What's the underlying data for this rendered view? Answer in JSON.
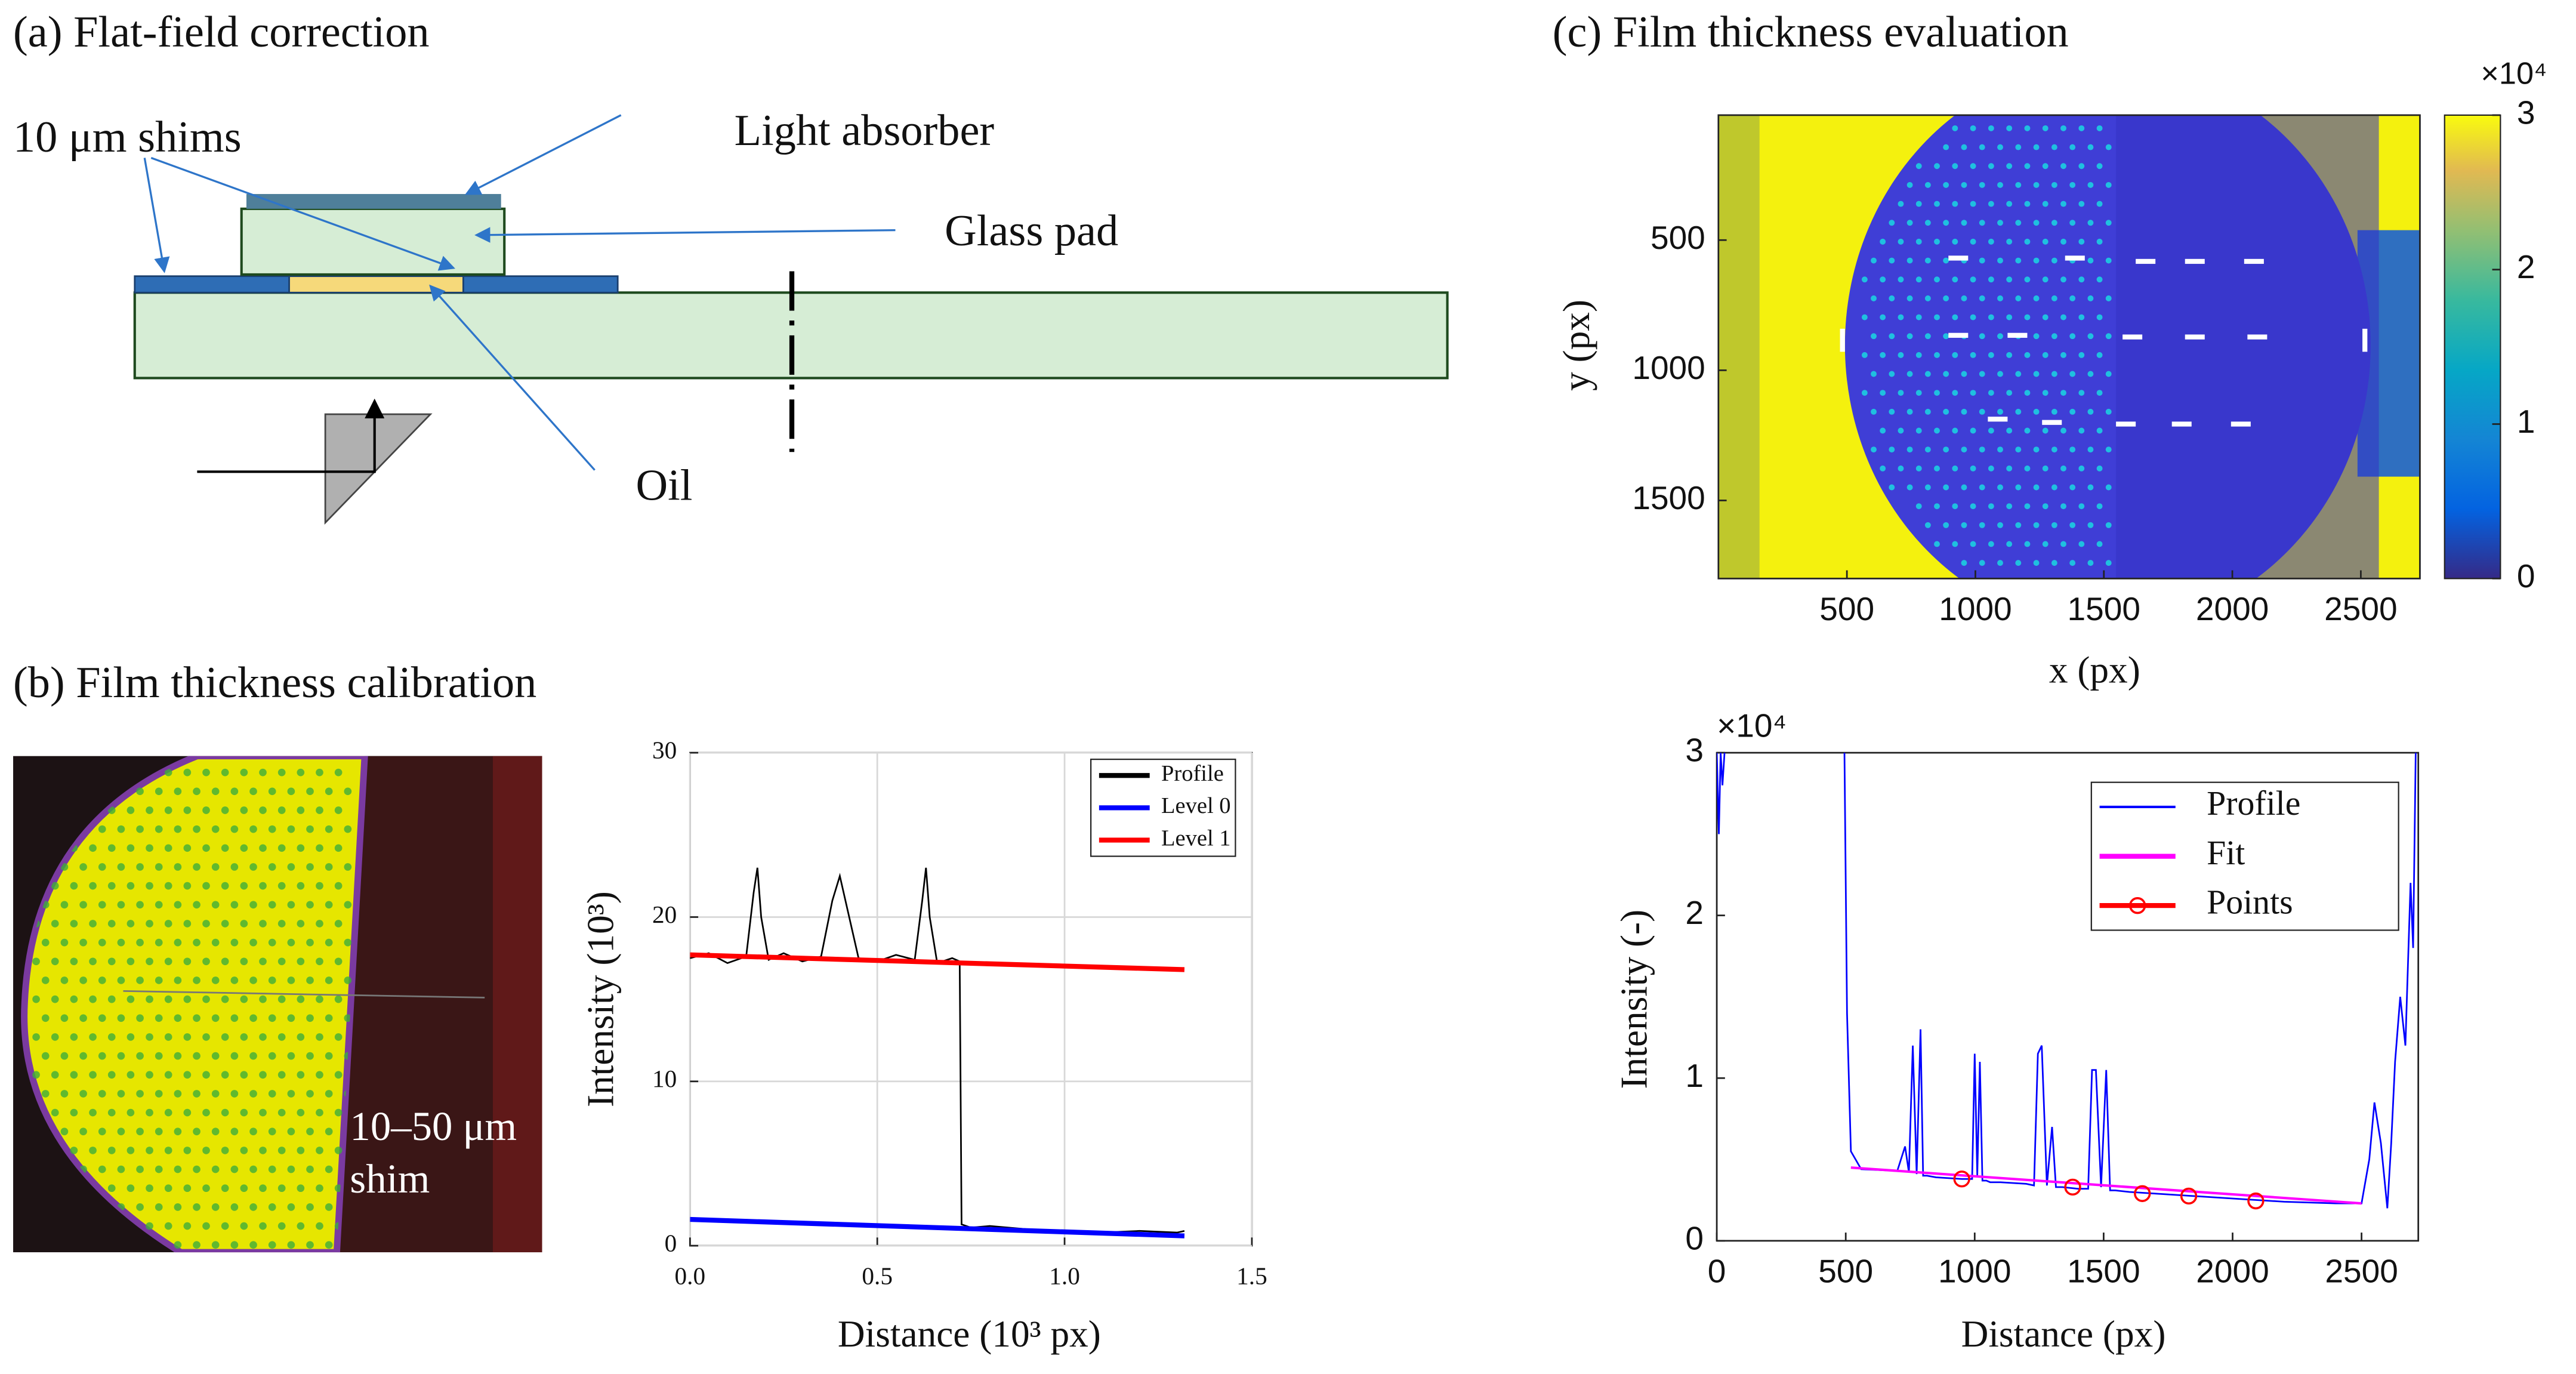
{
  "panels": [
    {
      "label": "(a) Flat-field correction",
      "annotations": [
        "10 μm shims",
        "Light absorber",
        "Glass pad",
        "Oil"
      ]
    },
    {
      "label": "(b) Film thickness calibration",
      "image_label": [
        "10–50 μm",
        "shim"
      ]
    },
    {
      "label": "(c) Film thickness evaluation"
    }
  ],
  "chart_data": [
    {
      "type": "heatmap",
      "xlabel": "x (px)",
      "ylabel": "y (px)",
      "xlim": [
        0,
        2730
      ],
      "xticks": [
        500,
        1000,
        1500,
        2000,
        2500
      ],
      "ylim": [
        20,
        1800
      ],
      "yticks": [
        500,
        1000,
        1500
      ],
      "y_reversed": true,
      "clim": [
        0,
        3
      ],
      "cticks": [
        0,
        1,
        2,
        3
      ],
      "colorbar_multiplier": "×10⁴"
    },
    {
      "type": "line",
      "xlabel": "Distance (10³ px)",
      "ylabel": "Intensity (10³)",
      "xlim": [
        0,
        1.5
      ],
      "xticks": [
        {
          "value": 0,
          "label": "0.0"
        },
        0.5,
        {
          "value": 1,
          "label": "1.0"
        },
        1.5
      ],
      "ylim": [
        0,
        30
      ],
      "yticks": [
        0,
        10,
        20,
        30
      ],
      "grid": true,
      "legend": "upper right",
      "series": [
        {
          "name": "Profile",
          "color": "#000000",
          "x": [
            0,
            0.05,
            0.1,
            0.15,
            0.17,
            0.18,
            0.19,
            0.21,
            0.25,
            0.3,
            0.35,
            0.38,
            0.4,
            0.42,
            0.45,
            0.5,
            0.55,
            0.6,
            0.62,
            0.63,
            0.64,
            0.66,
            0.7,
            0.72,
            0.725,
            0.75,
            0.8,
            0.9,
            1.0,
            1.1,
            1.2,
            1.3,
            1.32
          ],
          "values": [
            17.5,
            17.8,
            17.2,
            17.6,
            21.5,
            23,
            20,
            17.4,
            17.8,
            17.3,
            17.6,
            21,
            22.5,
            20.5,
            17.5,
            17.3,
            17.7,
            17.4,
            21,
            23,
            20,
            17.2,
            17.5,
            17.3,
            1.3,
            1.1,
            1.2,
            1.0,
            0.9,
            0.8,
            0.9,
            0.8,
            0.9
          ]
        },
        {
          "name": "Level 0",
          "color": "#0000ff",
          "x": [
            0,
            1.32
          ],
          "values": [
            1.6,
            0.6
          ]
        },
        {
          "name": "Level 1",
          "color": "#ff0000",
          "x": [
            0,
            1.32
          ],
          "values": [
            17.7,
            16.8
          ]
        }
      ]
    },
    {
      "type": "line",
      "xlabel": "Distance (px)",
      "ylabel": "Intensity (-)",
      "y_multiplier": "×10⁴",
      "xlim": [
        0,
        2720
      ],
      "xticks": [
        0,
        500,
        1000,
        1500,
        2000,
        2500
      ],
      "ylim": [
        0,
        30000
      ],
      "yticks": [
        0,
        {
          "value": 10000,
          "label": "1"
        },
        {
          "value": 20000,
          "label": "2"
        },
        {
          "value": 30000,
          "label": "3"
        }
      ],
      "grid": false,
      "legend": "upper right",
      "series": [
        {
          "name": "Profile",
          "color": "#0000ff",
          "x": [
            0,
            8,
            15,
            22,
            30,
            200,
            495,
            505,
            520,
            560,
            700,
            730,
            745,
            760,
            775,
            790,
            800,
            815,
            850,
            950,
            990,
            1000,
            1010,
            1020,
            1030,
            1045,
            1060,
            1100,
            1200,
            1230,
            1245,
            1260,
            1280,
            1300,
            1315,
            1340,
            1400,
            1440,
            1455,
            1470,
            1490,
            1510,
            1525,
            1545,
            1600,
            1800,
            2000,
            2200,
            2400,
            2500,
            2530,
            2550,
            2575,
            2600,
            2615,
            2630,
            2650,
            2670,
            2690,
            2700,
            2710
          ],
          "values": [
            30000,
            25000,
            30000,
            28000,
            30000,
            null,
            30000,
            14000,
            5500,
            4400,
            4300,
            5800,
            4200,
            12000,
            4100,
            13000,
            4000,
            4000,
            3900,
            3800,
            3800,
            11500,
            4000,
            11000,
            3700,
            3700,
            3600,
            3600,
            3500,
            3400,
            11500,
            12000,
            3400,
            7000,
            3300,
            3300,
            3200,
            3200,
            10500,
            10500,
            3300,
            10500,
            3100,
            3100,
            3000,
            2800,
            2600,
            2400,
            2300,
            2300,
            5000,
            8500,
            6000,
            2000,
            6000,
            11000,
            15000,
            12000,
            22000,
            18000,
            30000
          ]
        },
        {
          "name": "Fit",
          "color": "#ff00ff",
          "x": [
            520,
            2500
          ],
          "values": [
            4500,
            2300
          ]
        },
        {
          "name": "Points",
          "color": "#ff0000",
          "markers": true,
          "line": false,
          "x": [
            950,
            1380,
            1650,
            1830,
            2090
          ],
          "values": [
            3800,
            3300,
            2900,
            2750,
            2450
          ]
        }
      ]
    }
  ]
}
